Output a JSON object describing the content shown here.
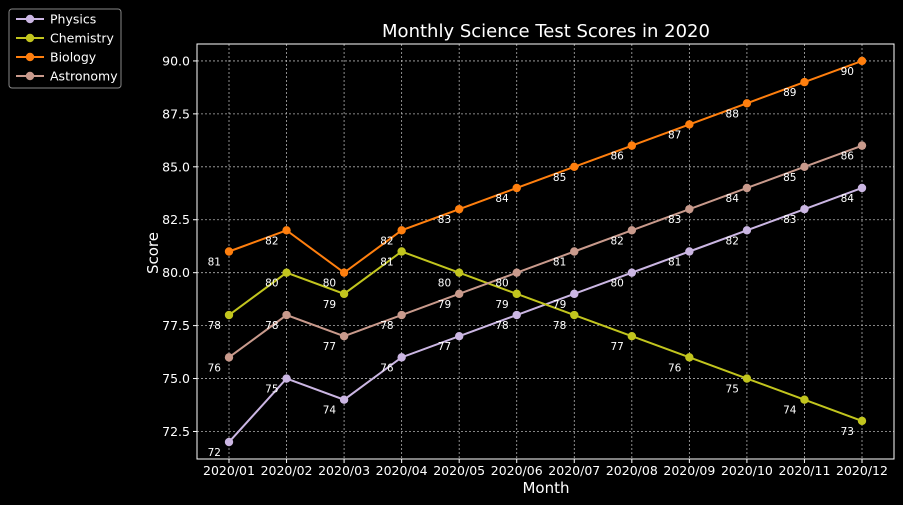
{
  "chart_data": {
    "type": "line",
    "title": "Monthly Science Test Scores in 2020",
    "xlabel": "Month",
    "ylabel": "Score",
    "categories": [
      "2020/01",
      "2020/02",
      "2020/03",
      "2020/04",
      "2020/05",
      "2020/06",
      "2020/07",
      "2020/08",
      "2020/09",
      "2020/10",
      "2020/11",
      "2020/12"
    ],
    "ylim": [
      71.2,
      90.8
    ],
    "yticks": [
      "72.5",
      "75.0",
      "77.5",
      "80.0",
      "82.5",
      "85.0",
      "87.5",
      "90.0"
    ],
    "grid": true,
    "legend_position": "top-left outside",
    "series": [
      {
        "name": "Physics",
        "color": "#cbb6e3",
        "values": [
          72,
          75,
          74,
          76,
          77,
          78,
          79,
          80,
          81,
          82,
          83,
          84
        ]
      },
      {
        "name": "Chemistry",
        "color": "#c2c51e",
        "values": [
          78,
          80,
          79,
          81,
          80,
          79,
          78,
          77,
          76,
          75,
          74,
          73
        ]
      },
      {
        "name": "Biology",
        "color": "#ff7f0e",
        "values": [
          81,
          82,
          80,
          82,
          83,
          84,
          85,
          86,
          87,
          88,
          89,
          90
        ]
      },
      {
        "name": "Astronomy",
        "color": "#c99a8c",
        "values": [
          76,
          78,
          77,
          78,
          79,
          80,
          81,
          82,
          83,
          84,
          85,
          86
        ]
      }
    ]
  }
}
